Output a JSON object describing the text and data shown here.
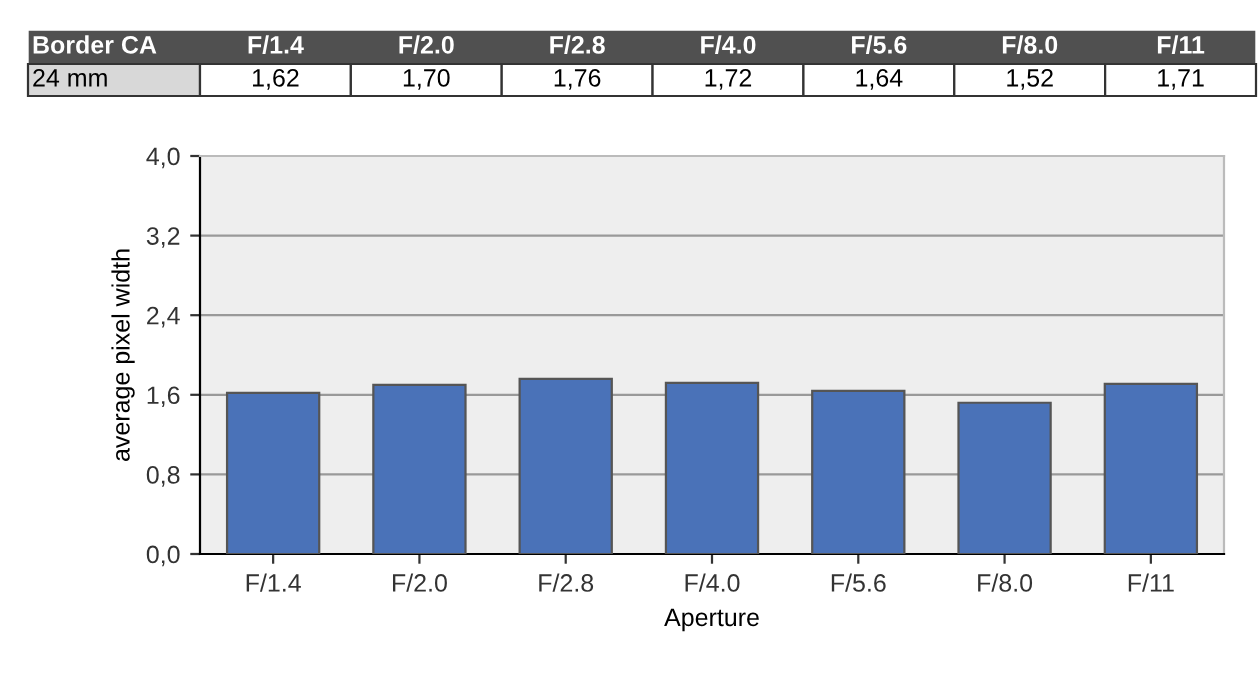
{
  "chart_data": {
    "type": "bar",
    "xlabel": "Aperture",
    "ylabel": "average pixel width",
    "categories": [
      "F/1.4",
      "F/2.0",
      "F/2.8",
      "F/4.0",
      "F/5.6",
      "F/8.0",
      "F/11"
    ],
    "values": [
      1.62,
      1.7,
      1.76,
      1.72,
      1.64,
      1.52,
      1.71
    ],
    "value_labels": [
      "1,62",
      "1,70",
      "1,76",
      "1,72",
      "1,64",
      "1,52",
      "1,71"
    ],
    "color": "#4a72b8",
    "ylim": [
      0,
      4
    ],
    "yticks": [
      {
        "value": 0,
        "label": "0,0"
      },
      {
        "value": 0.8,
        "label": "0,8"
      },
      {
        "value": 1.6,
        "label": "1,6"
      },
      {
        "value": 2.4,
        "label": "2,4"
      },
      {
        "value": 3.2,
        "label": "3,2"
      },
      {
        "value": 4,
        "label": "4,0"
      }
    ],
    "grid": "y",
    "annotations": [
      "Border CA",
      "24 mm"
    ]
  }
}
